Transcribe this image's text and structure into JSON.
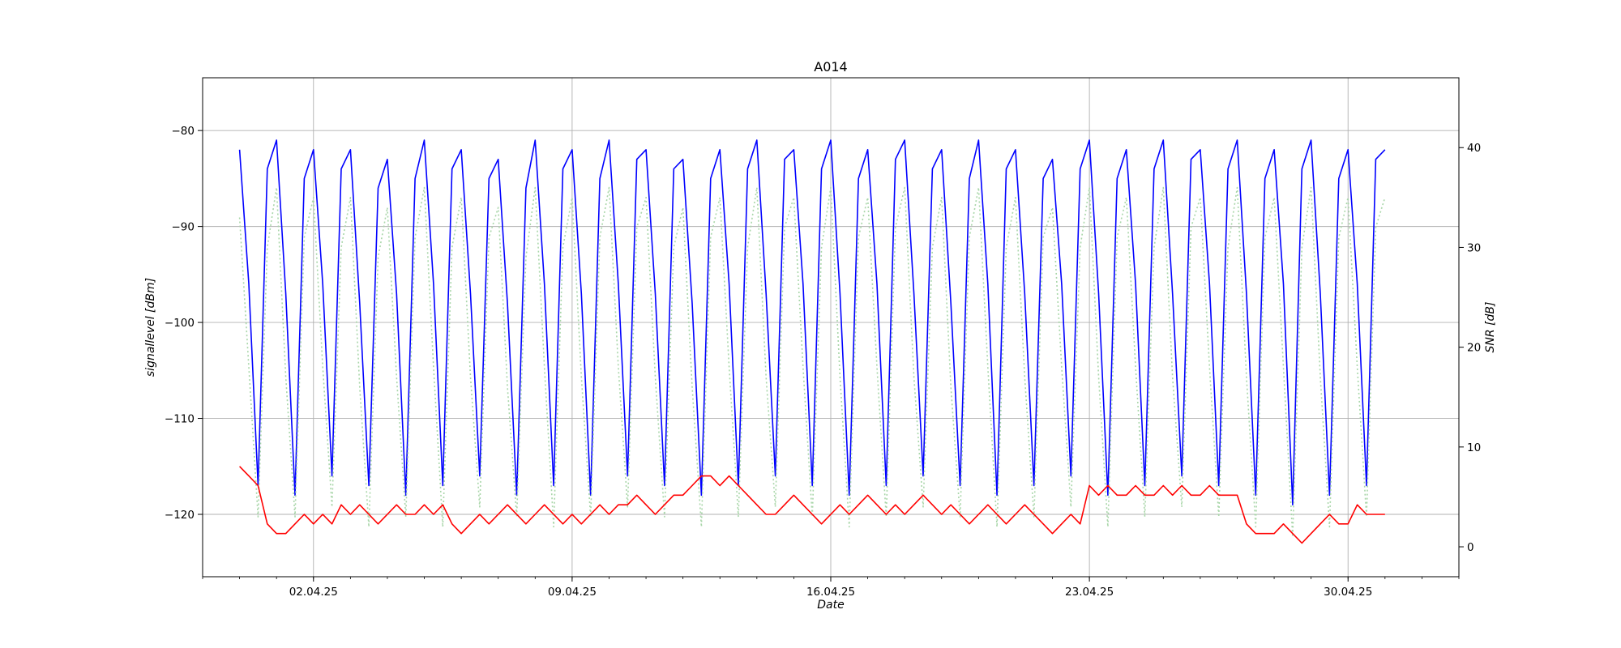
{
  "chart_data": {
    "type": "line",
    "title": "A014",
    "xlabel": "Date",
    "ylabel_left": "signallevel [dBm]",
    "ylabel_right": "SNR [dB]",
    "x_range": [
      "2025-03-30",
      "2025-05-03"
    ],
    "x_tick_labels": [
      "02.04.25",
      "09.04.25",
      "16.04.25",
      "23.04.25",
      "30.04.25"
    ],
    "x_tick_dates": [
      "2025-04-02",
      "2025-04-09",
      "2025-04-16",
      "2025-04-23",
      "2025-04-30"
    ],
    "ylim_left": [
      -126.5,
      -74.5
    ],
    "ylim_right": [
      -3,
      47
    ],
    "y_ticks_left": [
      -80,
      -90,
      -100,
      -110,
      -120
    ],
    "y_ticks_right": [
      0,
      10,
      20,
      30,
      40
    ],
    "y_tick_labels_left": [
      "−80",
      "−90",
      "−100",
      "−110",
      "−120"
    ],
    "y_tick_labels_right": [
      "0",
      "10",
      "20",
      "30",
      "40"
    ],
    "grid": true,
    "series": [
      {
        "axis": "left",
        "color": "#0000ff",
        "style": "solid",
        "x_start": "2025-03-31",
        "x_end": "2025-05-01",
        "x_step_days": 0.25,
        "values": [
          -82,
          -96,
          -117,
          -84,
          -81,
          -97,
          -118,
          -85,
          -82,
          -96,
          -116,
          -84,
          -82,
          -98,
          -117,
          -86,
          -83,
          -97,
          -118,
          -85,
          -81,
          -96,
          -117,
          -84,
          -82,
          -97,
          -116,
          -85,
          -83,
          -98,
          -118,
          -86,
          -81,
          -96,
          -117,
          -84,
          -82,
          -97,
          -118,
          -85,
          -81,
          -96,
          -116,
          -83,
          -82,
          -97,
          -117,
          -84,
          -83,
          -98,
          -118,
          -85,
          -82,
          -96,
          -117,
          -84,
          -81,
          -97,
          -116,
          -83,
          -82,
          -96,
          -117,
          -84,
          -81,
          -97,
          -118,
          -85,
          -82,
          -96,
          -117,
          -83,
          -81,
          -97,
          -116,
          -84,
          -82,
          -98,
          -117,
          -85,
          -81,
          -96,
          -118,
          -84,
          -82,
          -97,
          -117,
          -85,
          -83,
          -96,
          -116,
          -84,
          -81,
          -97,
          -118,
          -85,
          -82,
          -96,
          -117,
          -84,
          -81,
          -97,
          -116,
          -83,
          -82,
          -96,
          -117,
          -84,
          -81,
          -97,
          -118,
          -85,
          -82,
          -96,
          -119,
          -84,
          -81,
          -97,
          -118,
          -85,
          -82,
          -96,
          -117,
          -83,
          -82
        ]
      },
      {
        "axis": "right",
        "color": "#a9d6a9",
        "style": "dotted",
        "x_start": "2025-03-31",
        "x_end": "2025-05-01",
        "x_step_days": 0.25,
        "values": [
          33,
          18,
          3,
          30,
          36,
          17,
          3,
          31,
          35,
          18,
          4,
          30,
          35,
          16,
          2,
          29,
          34,
          17,
          3,
          31,
          36,
          18,
          2,
          30,
          35,
          17,
          4,
          31,
          34,
          16,
          3,
          29,
          36,
          18,
          2,
          30,
          35,
          17,
          3,
          31,
          36,
          18,
          4,
          32,
          35,
          17,
          3,
          30,
          34,
          16,
          2,
          31,
          35,
          18,
          3,
          30,
          36,
          17,
          4,
          32,
          35,
          18,
          3,
          30,
          36,
          17,
          2,
          31,
          35,
          18,
          3,
          32,
          36,
          17,
          4,
          30,
          35,
          16,
          3,
          31,
          36,
          18,
          2,
          30,
          35,
          17,
          3,
          31,
          34,
          18,
          4,
          30,
          36,
          17,
          2,
          31,
          35,
          18,
          3,
          30,
          36,
          17,
          4,
          32,
          35,
          18,
          3,
          30,
          36,
          17,
          2,
          31,
          35,
          18,
          1,
          30,
          36,
          17,
          2,
          31,
          35,
          18,
          3,
          32,
          35
        ]
      },
      {
        "axis": "left",
        "color": "#ff0000",
        "style": "solid",
        "x_start": "2025-03-31",
        "x_end": "2025-05-01",
        "x_step_days": 0.25,
        "values": [
          -115,
          -116,
          -117,
          -121,
          -122,
          -122,
          -121,
          -120,
          -121,
          -120,
          -121,
          -119,
          -120,
          -119,
          -120,
          -121,
          -120,
          -119,
          -120,
          -120,
          -119,
          -120,
          -119,
          -121,
          -122,
          -121,
          -120,
          -121,
          -120,
          -119,
          -120,
          -121,
          -120,
          -119,
          -120,
          -121,
          -120,
          -121,
          -120,
          -119,
          -120,
          -119,
          -119,
          -118,
          -119,
          -120,
          -119,
          -118,
          -118,
          -117,
          -116,
          -116,
          -117,
          -116,
          -117,
          -118,
          -119,
          -120,
          -120,
          -119,
          -118,
          -119,
          -120,
          -121,
          -120,
          -119,
          -120,
          -119,
          -118,
          -119,
          -120,
          -119,
          -120,
          -119,
          -118,
          -119,
          -120,
          -119,
          -120,
          -121,
          -120,
          -119,
          -120,
          -121,
          -120,
          -119,
          -120,
          -121,
          -122,
          -121,
          -120,
          -121,
          -117,
          -118,
          -117,
          -118,
          -118,
          -117,
          -118,
          -118,
          -117,
          -118,
          -117,
          -118,
          -118,
          -117,
          -118,
          -118,
          -118,
          -121,
          -122,
          -122,
          -122,
          -121,
          -122,
          -123,
          -122,
          -121,
          -120,
          -121,
          -121,
          -119,
          -120,
          -120,
          -120
        ]
      }
    ]
  }
}
